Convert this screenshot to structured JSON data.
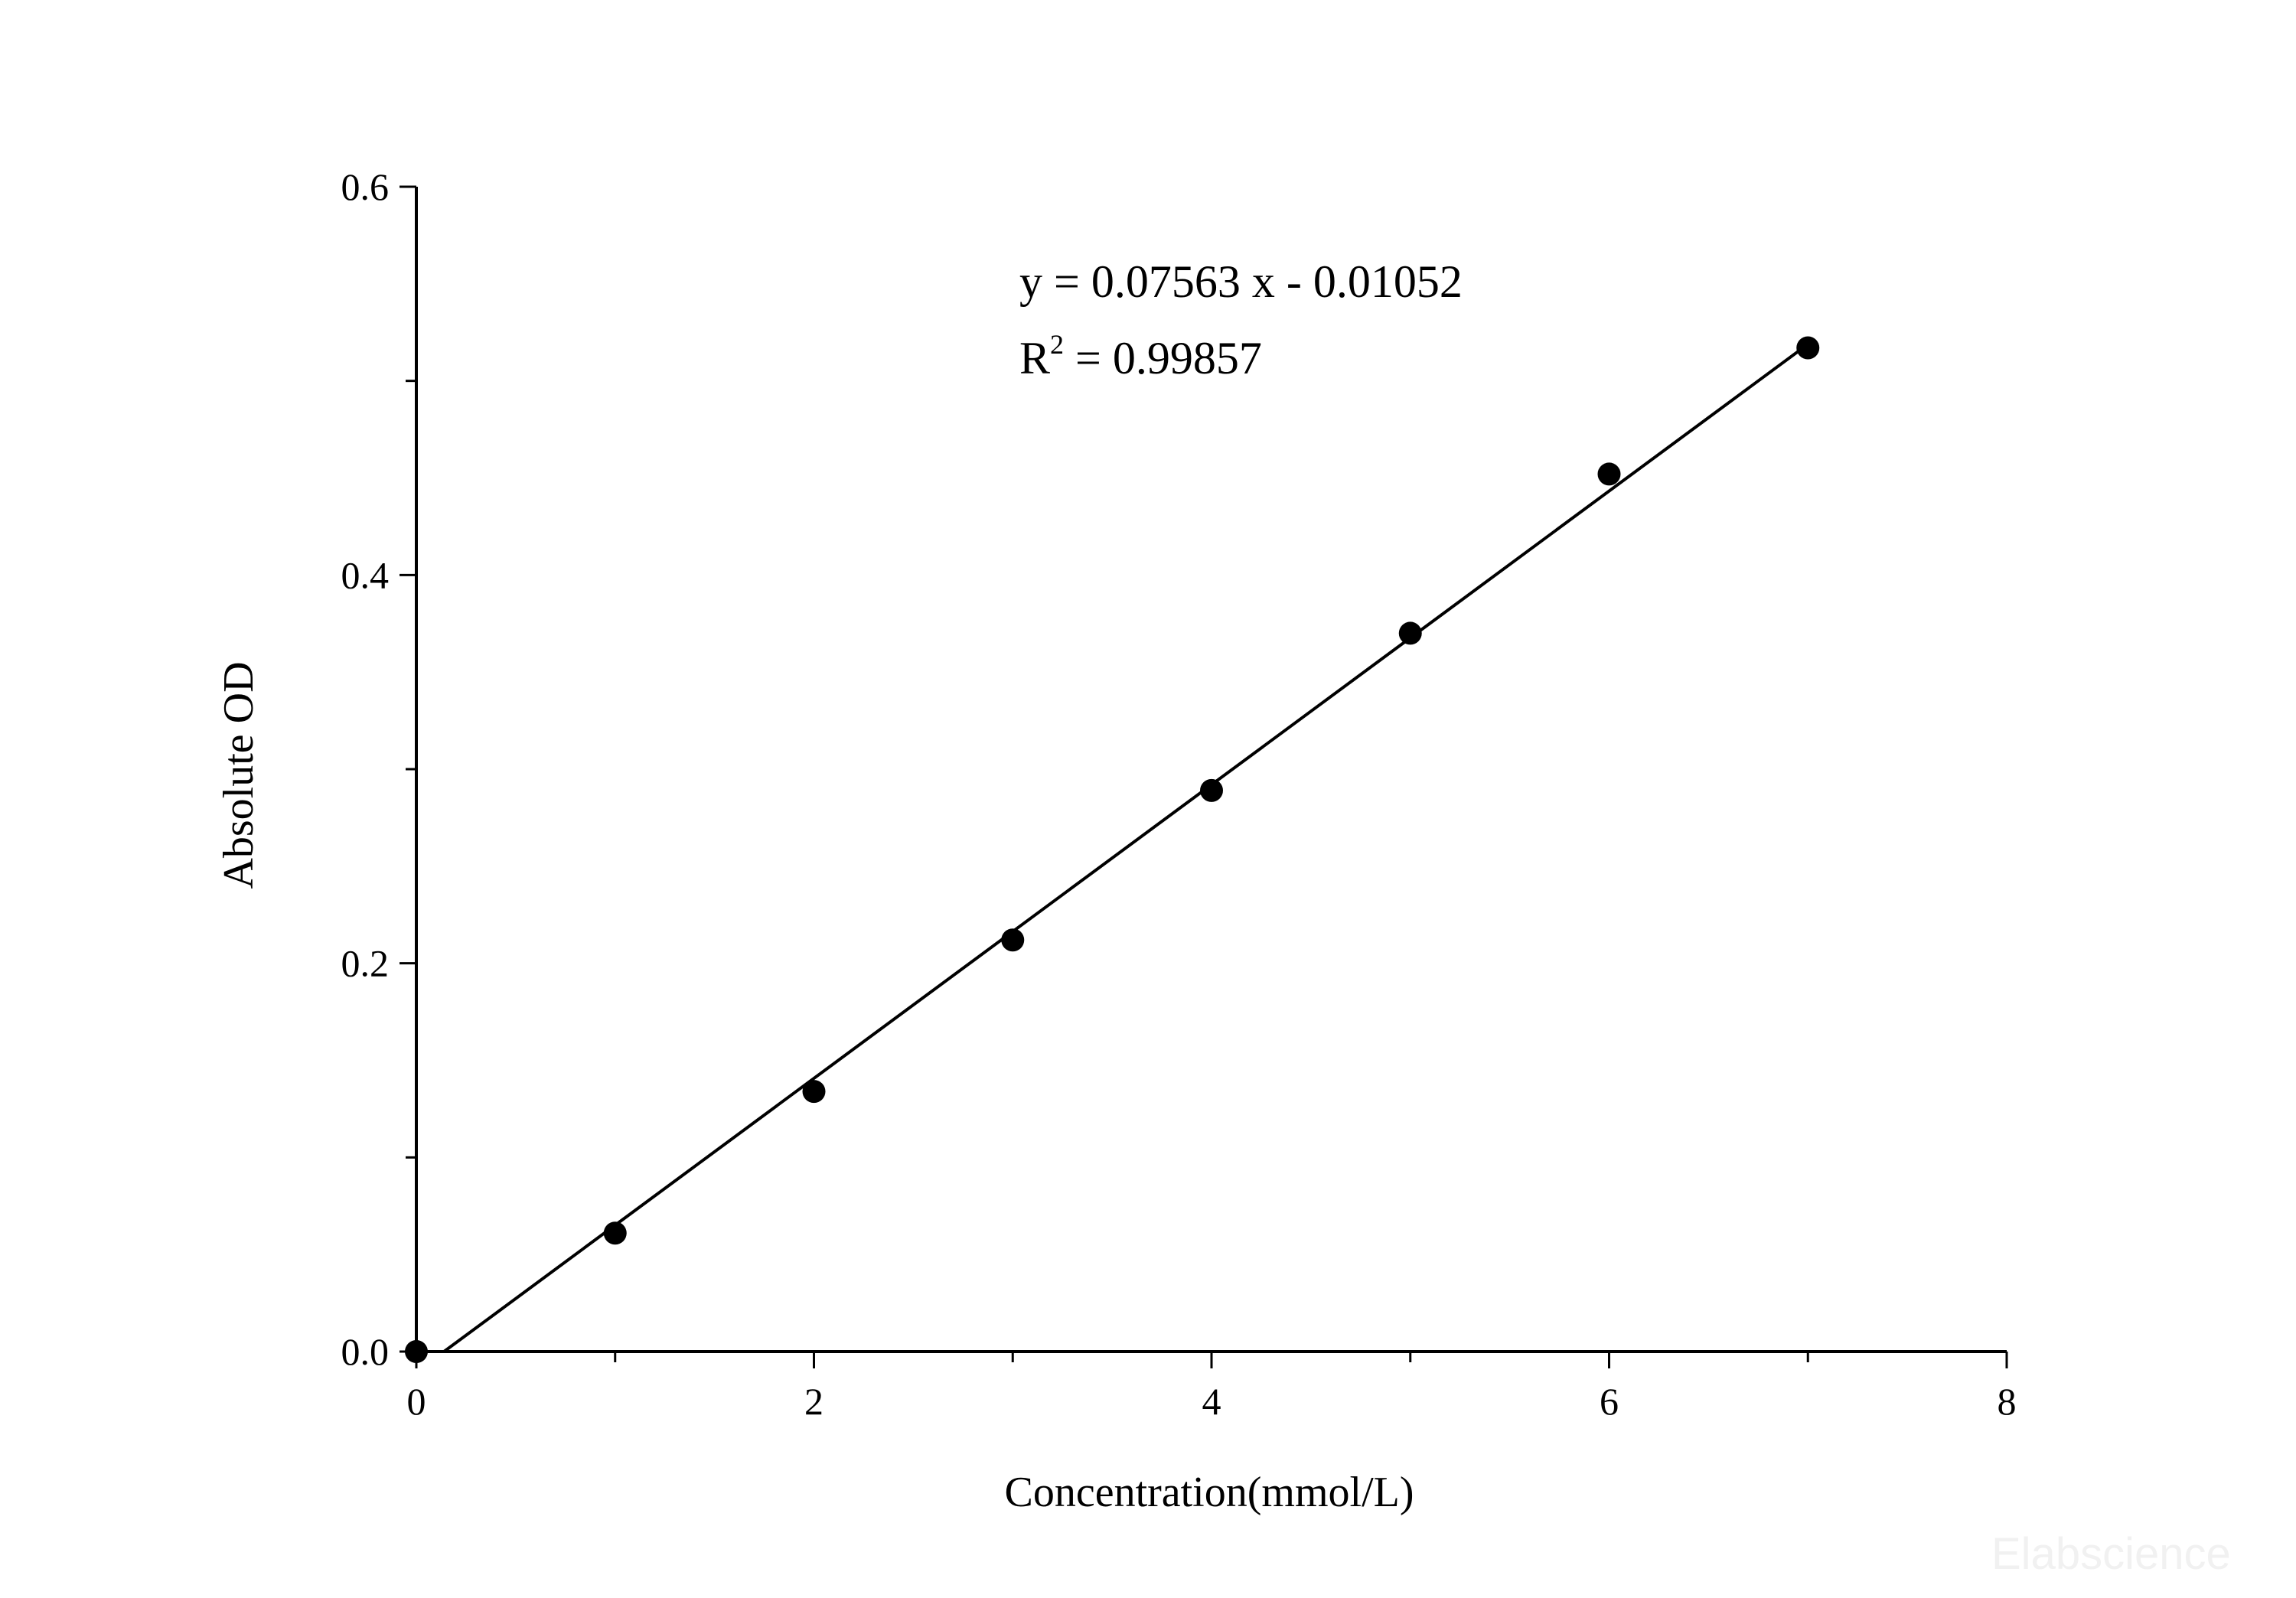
{
  "chart_data": {
    "type": "scatter",
    "xlabel": "Concentration(mmol/L)",
    "ylabel": "Absolute OD",
    "xlim": [
      0,
      8
    ],
    "ylim": [
      0,
      0.6
    ],
    "x_ticks_major": [
      "0",
      "2",
      "4",
      "6",
      "8"
    ],
    "y_ticks_major": [
      "0.0",
      "0.2",
      "0.4",
      "0.6"
    ],
    "grid": false,
    "series": [
      {
        "x": [
          0,
          1,
          2,
          3,
          4,
          5,
          6,
          7
        ],
        "y": [
          0.0,
          0.061,
          0.134,
          0.212,
          0.289,
          0.37,
          0.452,
          0.517
        ]
      }
    ],
    "fit": {
      "slope": 0.07563,
      "intercept": -0.01052,
      "x_range": [
        0.139,
        7
      ]
    },
    "equation_line": "y = 0.07563 x - 0.01052",
    "r2_letter": "R",
    "r2_sup": "2",
    "r2_rest": " = 0.99857",
    "colors": {
      "marks": "#000000",
      "background": "#ffffff"
    }
  },
  "watermark": "Elabscience"
}
